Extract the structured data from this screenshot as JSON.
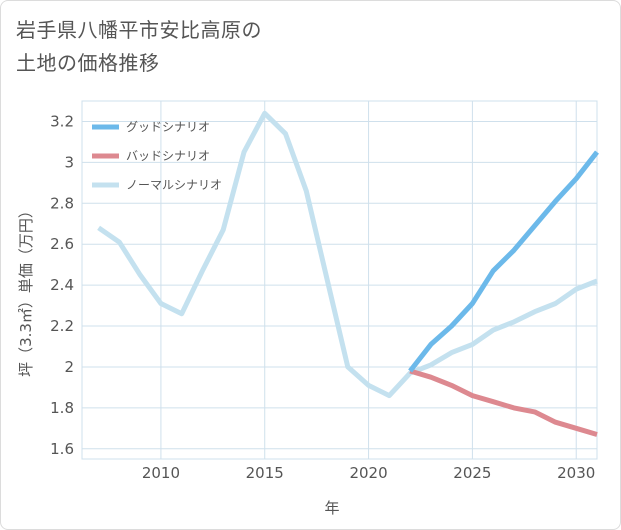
{
  "page": {
    "title_lines": [
      "岩手県八幡平市安比高原の",
      "土地の価格推移"
    ]
  },
  "chart_data": {
    "type": "line",
    "title": "岩手県八幡平市安比高原の土地の価格推移",
    "xlabel": "年",
    "ylabel": "坪（3.3㎡）単価（万円）",
    "xlim": [
      2006.2,
      2031
    ],
    "ylim": [
      1.55,
      3.3
    ],
    "x_ticks": [
      2010,
      2015,
      2020,
      2025,
      2030
    ],
    "y_ticks": [
      1.6,
      1.8,
      2,
      2.2,
      2.4,
      2.6,
      2.8,
      3,
      3.2
    ],
    "grid": true,
    "legend_position": "top-left",
    "series": [
      {
        "name": "グッドシナリオ",
        "color": "#6cb9ea",
        "x": [
          2022,
          2023,
          2024,
          2025,
          2026,
          2027,
          2028,
          2029,
          2030,
          2031
        ],
        "values": [
          1.98,
          2.11,
          2.2,
          2.31,
          2.47,
          2.57,
          2.69,
          2.81,
          2.92,
          3.05
        ]
      },
      {
        "name": "バッドシナリオ",
        "color": "#dd8990",
        "x": [
          2022,
          2023,
          2024,
          2025,
          2026,
          2027,
          2028,
          2029,
          2030,
          2031
        ],
        "values": [
          1.98,
          1.95,
          1.91,
          1.86,
          1.83,
          1.8,
          1.78,
          1.73,
          1.7,
          1.67
        ]
      },
      {
        "name": "ノーマルシナリオ",
        "color": "#c4e1ef",
        "x": [
          2007,
          2008,
          2009,
          2010,
          2011,
          2012,
          2013,
          2014,
          2015,
          2016,
          2017,
          2018,
          2019,
          2020,
          2021,
          2022,
          2023,
          2024,
          2025,
          2026,
          2027,
          2028,
          2029,
          2030,
          2031
        ],
        "values": [
          2.68,
          2.61,
          2.45,
          2.31,
          2.26,
          2.47,
          2.67,
          3.05,
          3.24,
          3.14,
          2.86,
          2.43,
          2.0,
          1.91,
          1.86,
          1.97,
          2.01,
          2.07,
          2.11,
          2.18,
          2.22,
          2.27,
          2.31,
          2.38,
          2.42
        ]
      }
    ]
  }
}
